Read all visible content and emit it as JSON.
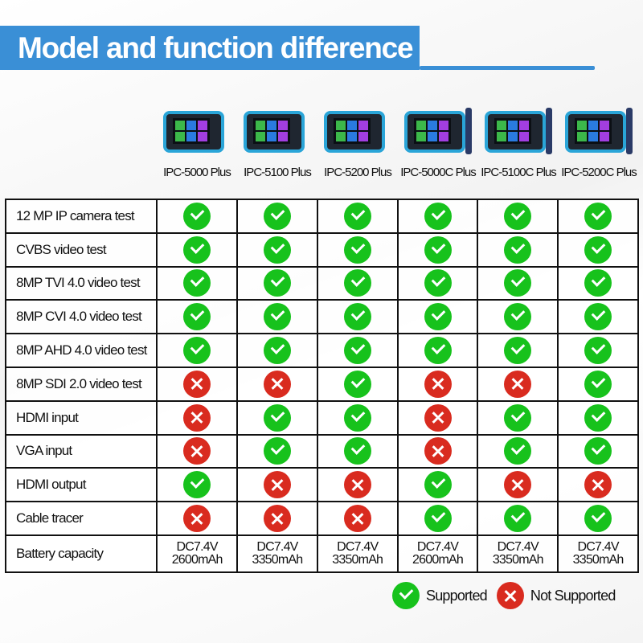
{
  "title": "Model and function difference",
  "models": [
    "IPC-5000 Plus",
    "IPC-5100 Plus",
    "IPC-5200 Plus",
    "IPC-5000C Plus",
    "IPC-5100C Plus",
    "IPC-5200C Plus"
  ],
  "models_with_tracer": [
    false,
    false,
    false,
    true,
    true,
    true
  ],
  "features": [
    {
      "label": "12 MP IP camera test",
      "support": [
        true,
        true,
        true,
        true,
        true,
        true
      ]
    },
    {
      "label": "CVBS video test",
      "support": [
        true,
        true,
        true,
        true,
        true,
        true
      ]
    },
    {
      "label": "8MP TVI 4.0 video test",
      "support": [
        true,
        true,
        true,
        true,
        true,
        true
      ]
    },
    {
      "label": "8MP CVI 4.0 video test",
      "support": [
        true,
        true,
        true,
        true,
        true,
        true
      ]
    },
    {
      "label": "8MP AHD 4.0 video test",
      "support": [
        true,
        true,
        true,
        true,
        true,
        true
      ]
    },
    {
      "label": "8MP SDI 2.0 video test",
      "support": [
        false,
        false,
        true,
        false,
        false,
        true
      ]
    },
    {
      "label": "HDMI input",
      "support": [
        false,
        true,
        true,
        false,
        true,
        true
      ]
    },
    {
      "label": "VGA input",
      "support": [
        false,
        true,
        true,
        false,
        true,
        true
      ]
    },
    {
      "label": "HDMI output",
      "support": [
        true,
        false,
        false,
        true,
        false,
        false
      ]
    },
    {
      "label": "Cable tracer",
      "support": [
        false,
        false,
        false,
        true,
        true,
        true
      ]
    }
  ],
  "battery": {
    "label": "Battery capacity",
    "values": [
      [
        "DC7.4V",
        "2600mAh"
      ],
      [
        "DC7.4V",
        "3350mAh"
      ],
      [
        "DC7.4V",
        "3350mAh"
      ],
      [
        "DC7.4V",
        "2600mAh"
      ],
      [
        "DC7.4V",
        "3350mAh"
      ],
      [
        "DC7.4V",
        "3350mAh"
      ]
    ]
  },
  "legend": {
    "supported": "Supported",
    "not_supported": "Not Supported"
  },
  "colors": {
    "brand": "#3a8fd6",
    "supported": "#17c21c",
    "not_supported": "#d92b1f"
  }
}
